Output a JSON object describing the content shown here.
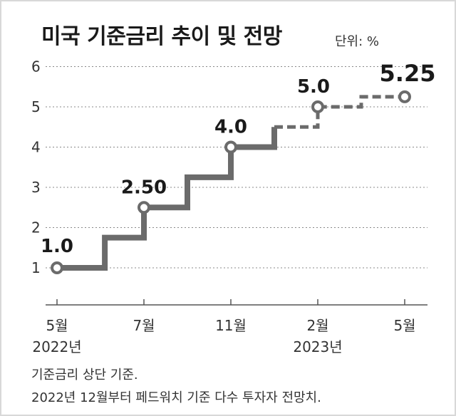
{
  "chart_data": {
    "type": "line",
    "title": "미국 기준금리 추이 및 전망",
    "unit_label": "단위: %",
    "ylim": [
      0.5,
      6.3
    ],
    "yticks": [
      1,
      2,
      3,
      4,
      5,
      6
    ],
    "xticks": [
      {
        "label": "5월",
        "year": "2022년"
      },
      {
        "label": "7월",
        "year": ""
      },
      {
        "label": "11월",
        "year": ""
      },
      {
        "label": "2월",
        "year": "2023년"
      },
      {
        "label": "5월",
        "year": ""
      }
    ],
    "grid": true,
    "series": [
      {
        "style": "solid",
        "x": [
          0,
          0.55,
          0.55,
          1,
          1,
          1.5,
          1.5,
          2,
          2,
          2.5
        ],
        "y": [
          1.0,
          1.0,
          1.75,
          1.75,
          2.5,
          2.5,
          3.25,
          3.25,
          4.0,
          4.0
        ]
      },
      {
        "style": "solid",
        "x": [
          2,
          2.5,
          2.5
        ],
        "y": [
          4.0,
          4.0,
          4.5
        ]
      },
      {
        "style": "dashed",
        "x": [
          2.5,
          3,
          3,
          3.5,
          3.5,
          4
        ],
        "y": [
          4.5,
          4.5,
          5.0,
          5.0,
          5.25,
          5.25
        ]
      }
    ],
    "points": [
      {
        "x": 0,
        "y": 1.0,
        "label": "1.0"
      },
      {
        "x": 1,
        "y": 2.5,
        "label": "2.50"
      },
      {
        "x": 2,
        "y": 4.0,
        "label": "4.0"
      },
      {
        "x": 3,
        "y": 5.0,
        "label": "5.0"
      },
      {
        "x": 4,
        "y": 5.25,
        "label": "5.25"
      }
    ],
    "colors": {
      "line": "#6b6b6b",
      "grid": "#888888",
      "marker_fill": "#ffffff"
    }
  },
  "notes": [
    "기준금리 상단 기준.",
    "2022년 12월부터 페드워치 기준 다수 투자자 전망치."
  ]
}
